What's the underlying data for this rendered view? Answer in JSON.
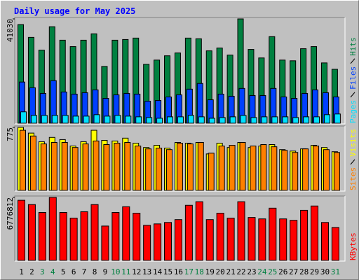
{
  "chart_data": [
    {
      "type": "bar",
      "title": "Daily usage for May 2025",
      "ylim": [
        0,
        41030
      ],
      "yticks": [
        41030
      ],
      "series": [
        {
          "name": "Hits",
          "color": "#008040",
          "values": [
            38800,
            33770,
            28750,
            37960,
            32660,
            30140,
            32660,
            35170,
            22330,
            32660,
            32930,
            33490,
            23170,
            24840,
            26520,
            27630,
            33490,
            33210,
            28470,
            29590,
            26800,
            41030,
            29030,
            25680,
            34050,
            24840,
            24560,
            29310,
            30140,
            23720,
            21210
          ]
        },
        {
          "name": "Files",
          "color": "#0040ff",
          "values": [
            16190,
            13960,
            11720,
            16750,
            12280,
            11440,
            12000,
            13120,
            9770,
            11160,
            11720,
            11440,
            8650,
            8930,
            10330,
            11160,
            13400,
            15630,
            9210,
            11440,
            10610,
            13680,
            10890,
            10890,
            13680,
            10330,
            9770,
            11720,
            13120,
            12000,
            10330
          ]
        },
        {
          "name": "Pages",
          "color": "#00e0ff",
          "values": [
            4470,
            3070,
            3070,
            3070,
            3070,
            2790,
            2790,
            3350,
            2790,
            3070,
            2790,
            2510,
            2230,
            1950,
            2510,
            2510,
            3070,
            2510,
            1950,
            2230,
            2510,
            3070,
            2230,
            2510,
            2510,
            2510,
            2230,
            2510,
            2510,
            3350,
            3630
          ]
        }
      ]
    },
    {
      "type": "bar",
      "ylim": [
        0,
        775
      ],
      "yticks": [
        775
      ],
      "series": [
        {
          "name": "Visits",
          "color": "#ffff00",
          "values": [
            775,
            705,
            599,
            652,
            625,
            546,
            599,
            740,
            616,
            608,
            643,
            581,
            528,
            555,
            520,
            590,
            581,
            590,
            449,
            581,
            528,
            590,
            528,
            546,
            564,
            502,
            484,
            511,
            555,
            528,
            476
          ]
        },
        {
          "name": "Sites",
          "color": "#ff8000",
          "values": [
            740,
            669,
            572,
            590,
            590,
            528,
            572,
            608,
            564,
            581,
            590,
            546,
            511,
            520,
            502,
            581,
            572,
            590,
            458,
            546,
            555,
            590,
            546,
            564,
            537,
            493,
            467,
            511,
            546,
            502,
            467
          ]
        }
      ]
    },
    {
      "type": "bar",
      "ylim": [
        0,
        6776812
      ],
      "yticks": [
        6776812
      ],
      "series": [
        {
          "name": "KBytes",
          "color": "#ff0000",
          "values": [
            6468760,
            6006700,
            5159600,
            6776812,
            5159600,
            4543500,
            5236600,
            6006700,
            3696400,
            5159600,
            5775700,
            5082600,
            3773400,
            3927500,
            4081500,
            4389500,
            5929700,
            6314700,
            4389500,
            5082600,
            4543500,
            6314700,
            4620500,
            4466500,
            5621700,
            4466500,
            4312500,
            5390600,
            5852700,
            4081500,
            3542400
          ]
        }
      ],
      "categories": [
        "1",
        "2",
        "3",
        "4",
        "5",
        "6",
        "7",
        "8",
        "9",
        "10",
        "11",
        "12",
        "13",
        "14",
        "15",
        "16",
        "17",
        "18",
        "19",
        "20",
        "21",
        "22",
        "23",
        "24",
        "25",
        "26",
        "27",
        "28",
        "29",
        "30",
        "31"
      ],
      "category_colors": [
        "#000000",
        "#000000",
        "#008040",
        "#008040",
        "#000000",
        "#000000",
        "#000000",
        "#000000",
        "#000000",
        "#008040",
        "#008040",
        "#000000",
        "#000000",
        "#000000",
        "#000000",
        "#000000",
        "#008040",
        "#008040",
        "#000000",
        "#000000",
        "#000000",
        "#000000",
        "#000000",
        "#008040",
        "#008040",
        "#000000",
        "#000000",
        "#000000",
        "#000000",
        "#000000",
        "#008040"
      ]
    }
  ]
}
